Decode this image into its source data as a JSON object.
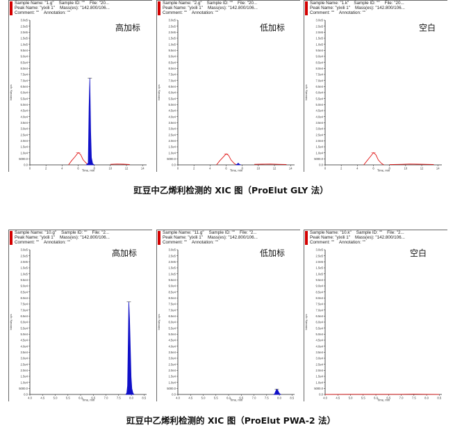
{
  "captions": [
    "豇豆中乙烯利检测的 XIC 图（ProElut GLY 法）",
    "豇豆中乙烯利检测的 XIC 图（ProElut    PWA-2 法）"
  ],
  "colors": {
    "trace_high": "#1010c8",
    "trace_low": "#e01010",
    "axis": "#222222",
    "header_bar": "#d40000"
  },
  "chart_data": [
    {
      "type": "line",
      "sample_name": "1.g",
      "header": [
        "Sample Name: \"1.g\"    Sample ID: \"\"    File: \"20...",
        "Peak Name: \"yixili 1\"    Mass(es): \"142.800/106...",
        "Comment: \"\"    Annotation: \"\""
      ],
      "label": "高加标",
      "xlabel": "Time, min",
      "ylabel": "Intensity, cps",
      "xlim": [
        0,
        14.5
      ],
      "ylim": [
        0,
        500000
      ],
      "x_ticks": [
        "0",
        "2",
        "4",
        "6",
        "8",
        "10",
        "12",
        "14"
      ],
      "y_ticks": [
        "0.0",
        "5000.0",
        "1.0e4",
        "1.5e4",
        "2.0e4",
        "2.5e4",
        "3.0e4",
        "3.5e4",
        "4.0e4",
        "4.5e4",
        "5.0e4",
        "5.5e4",
        "6.0e4",
        "6.5e4",
        "7.0e4",
        "7.5e4",
        "8.0e4",
        "8.5e4",
        "9.0e4",
        "9.5e4",
        "1.0e5",
        "1.5e5",
        "2.0e5",
        "2.5e5",
        "3.0e5"
      ],
      "series": [
        {
          "color": "#e01010",
          "x": [
            4.8,
            5.2,
            5.6,
            6.0,
            6.3,
            6.6,
            7.0,
            7.3
          ],
          "y": [
            0,
            15000,
            28000,
            42000,
            36000,
            18000,
            6000,
            0
          ]
        },
        {
          "color": "#1010c8",
          "x": [
            7.0,
            7.25,
            7.35,
            7.45,
            7.55,
            7.65,
            7.8,
            8.0
          ],
          "y": [
            0,
            6000,
            200000,
            300000,
            115000,
            25000,
            4000,
            0
          ]
        },
        {
          "color": "#e01010",
          "x": [
            10.0,
            10.8,
            11.6,
            12.4
          ],
          "y": [
            2000,
            3000,
            2500,
            1500
          ]
        }
      ]
    },
    {
      "type": "line",
      "sample_name": "2.g",
      "header": [
        "Sample Name: \"2.g\"    Sample ID: \"\"    File: \"20...",
        "Peak Name: \"yixili 1\"    Mass(es): \"142.800/106...",
        "Comment: \"\"    Annotation: \"\""
      ],
      "label": "低加标",
      "xlabel": "Time, min",
      "ylabel": "Intensity, cps",
      "xlim": [
        0,
        14.5
      ],
      "ylim": [
        0,
        500000
      ],
      "x_ticks": [
        "0",
        "2",
        "4",
        "6",
        "8",
        "10",
        "12",
        "14"
      ],
      "y_ticks": [
        "0.0",
        "5000.0",
        "1.0e4",
        "1.5e4",
        "2.0e4",
        "2.5e4",
        "3.0e4",
        "3.5e4",
        "4.0e4",
        "4.5e4",
        "5.0e4",
        "5.5e4",
        "6.0e4",
        "6.5e4",
        "7.0e4",
        "7.5e4",
        "8.0e4",
        "8.5e4",
        "9.0e4",
        "9.5e4",
        "1.0e5",
        "1.5e5",
        "2.0e5",
        "2.5e5",
        "3.0e5"
      ],
      "series": [
        {
          "color": "#e01010",
          "x": [
            4.8,
            5.2,
            5.6,
            6.0,
            6.3,
            6.6,
            7.0,
            7.3
          ],
          "y": [
            0,
            14000,
            26000,
            38000,
            33000,
            17000,
            5000,
            0
          ]
        },
        {
          "color": "#1010c8",
          "x": [
            7.2,
            7.4,
            7.5,
            7.6,
            7.8
          ],
          "y": [
            0,
            3000,
            6000,
            3000,
            0
          ]
        },
        {
          "color": "#e01010",
          "x": [
            9.5,
            10.5,
            11.5,
            12.5,
            13.5
          ],
          "y": [
            2000,
            2500,
            3000,
            2000,
            1500
          ]
        }
      ]
    },
    {
      "type": "line",
      "sample_name": "1.k",
      "header": [
        "Sample Name: \"1.k\"    Sample ID: \"\"    File: \"20...",
        "Peak Name: \"yixili 1\"    Mass(es): \"142.800/106...",
        "Comment: \"\"    Annotation: \"\""
      ],
      "label": "空白",
      "xlabel": "Time, min",
      "ylabel": "Intensity, cps",
      "xlim": [
        0,
        14.5
      ],
      "ylim": [
        0,
        500000
      ],
      "x_ticks": [
        "0",
        "2",
        "4",
        "6",
        "8",
        "10",
        "12",
        "14"
      ],
      "y_ticks": [
        "0.0",
        "5000.0",
        "1.0e4",
        "1.5e4",
        "2.0e4",
        "2.5e4",
        "3.0e4",
        "3.5e4",
        "4.0e4",
        "4.5e4",
        "5.0e4",
        "5.5e4",
        "6.0e4",
        "6.5e4",
        "7.0e4",
        "7.5e4",
        "8.0e4",
        "8.5e4",
        "9.0e4",
        "9.5e4",
        "1.0e5",
        "1.5e5",
        "2.0e5",
        "2.5e5",
        "3.0e5"
      ],
      "series": [
        {
          "color": "#e01010",
          "x": [
            4.8,
            5.2,
            5.6,
            6.0,
            6.3,
            6.6,
            7.0,
            7.3
          ],
          "y": [
            0,
            14000,
            28000,
            42000,
            35000,
            17000,
            5000,
            0
          ]
        },
        {
          "color": "#e01010",
          "x": [
            8.0,
            9.5,
            10.5,
            11.5,
            12.5,
            13.5
          ],
          "y": [
            1000,
            2000,
            3000,
            2500,
            2000,
            1500
          ]
        }
      ]
    },
    {
      "type": "line",
      "sample_name": "10.g",
      "header": [
        "Sample Name: \"10.g\"    Sample ID: \"\"    File: \"2...",
        "Peak Name: \"yixili 1\"    Mass(es): \"142.800/106...",
        "Comment: \"\"    Annotation: \"\""
      ],
      "label": "高加标",
      "xlabel": "Time, min",
      "ylabel": "Intensity, cps",
      "xlim": [
        4.0,
        8.6
      ],
      "ylim": [
        0,
        500000
      ],
      "x_ticks": [
        "4.0",
        "4.5",
        "5.0",
        "5.5",
        "6.0",
        "6.5",
        "7.0",
        "7.5",
        "8.0",
        "8.5"
      ],
      "y_ticks": [
        "0.0",
        "5000.0",
        "1.0e4",
        "1.5e4",
        "2.0e4",
        "2.5e4",
        "3.0e4",
        "3.5e4",
        "4.0e4",
        "4.5e4",
        "5.0e4",
        "5.5e4",
        "6.0e4",
        "6.5e4",
        "7.0e4",
        "7.5e4",
        "8.0e4",
        "8.5e4",
        "9.0e4",
        "9.5e4",
        "1.0e5",
        "1.5e5",
        "2.0e5",
        "2.5e5",
        "3.0e5"
      ],
      "series": [
        {
          "color": "#1010c8",
          "x": [
            7.78,
            7.82,
            7.85,
            7.88,
            7.9,
            7.93,
            7.96,
            7.99,
            8.02,
            8.06,
            8.1
          ],
          "y": [
            0,
            5000,
            30000,
            200000,
            320000,
            260000,
            160000,
            60000,
            20000,
            5000,
            0
          ]
        }
      ]
    },
    {
      "type": "line",
      "sample_name": "11.g",
      "header": [
        "Sample Name: \"11.g\"    Sample ID: \"\"    File: \"2...",
        "Peak Name: \"yixili 1\"    Mass(es): \"142.800/106...",
        "Comment: \"\"    Annotation: \"\""
      ],
      "label": "低加标",
      "xlabel": "Time, min",
      "ylabel": "Intensity, cps",
      "xlim": [
        4.0,
        8.6
      ],
      "ylim": [
        0,
        500000
      ],
      "x_ticks": [
        "4.0",
        "4.5",
        "5.0",
        "5.5",
        "6.0",
        "6.5",
        "7.0",
        "7.5",
        "8.0",
        "8.5"
      ],
      "y_ticks": [
        "0.0",
        "5000.0",
        "1.0e4",
        "1.5e4",
        "2.0e4",
        "2.5e4",
        "3.0e4",
        "3.5e4",
        "4.0e4",
        "4.5e4",
        "5.0e4",
        "5.5e4",
        "6.0e4",
        "6.5e4",
        "7.0e4",
        "7.5e4",
        "8.0e4",
        "8.5e4",
        "9.0e4",
        "9.5e4",
        "1.0e5",
        "1.5e5",
        "2.0e5",
        "2.5e5",
        "3.0e5"
      ],
      "series": [
        {
          "color": "#1010c8",
          "x": [
            7.78,
            7.82,
            7.86,
            7.9,
            7.94,
            7.98,
            8.02,
            8.06
          ],
          "y": [
            0,
            3000,
            12000,
            18000,
            14000,
            6000,
            2000,
            0
          ]
        }
      ]
    },
    {
      "type": "line",
      "sample_name": "10.k",
      "header": [
        "Sample Name: \"10.k\"    Sample ID: \"\"    File: \"2...",
        "Peak Name: \"yixili 1\"    Mass(es): \"142.800/106...",
        "Comment: \"\"    Annotation: \"\""
      ],
      "label": "空白",
      "xlabel": "Time, min",
      "ylabel": "Intensity, cps",
      "xlim": [
        4.0,
        8.6
      ],
      "ylim": [
        0,
        500000
      ],
      "x_ticks": [
        "4.0",
        "4.5",
        "5.0",
        "5.5",
        "6.0",
        "6.5",
        "7.0",
        "7.5",
        "8.0",
        "8.5"
      ],
      "y_ticks": [
        "0.0",
        "5000.0",
        "1.0e4",
        "1.5e4",
        "2.0e4",
        "2.5e4",
        "3.0e4",
        "3.5e4",
        "4.0e4",
        "4.5e4",
        "5.0e4",
        "5.5e4",
        "6.0e4",
        "6.5e4",
        "7.0e4",
        "7.5e4",
        "8.0e4",
        "8.5e4",
        "9.0e4",
        "9.5e4",
        "1.0e5",
        "1.5e5",
        "2.0e5",
        "2.5e5",
        "3.0e5"
      ],
      "series": [
        {
          "color": "#e01010",
          "x": [
            4.0,
            5.0,
            6.0,
            7.0,
            7.5,
            8.0,
            8.5
          ],
          "y": [
            300,
            500,
            400,
            600,
            1000,
            500,
            300
          ]
        }
      ]
    }
  ]
}
